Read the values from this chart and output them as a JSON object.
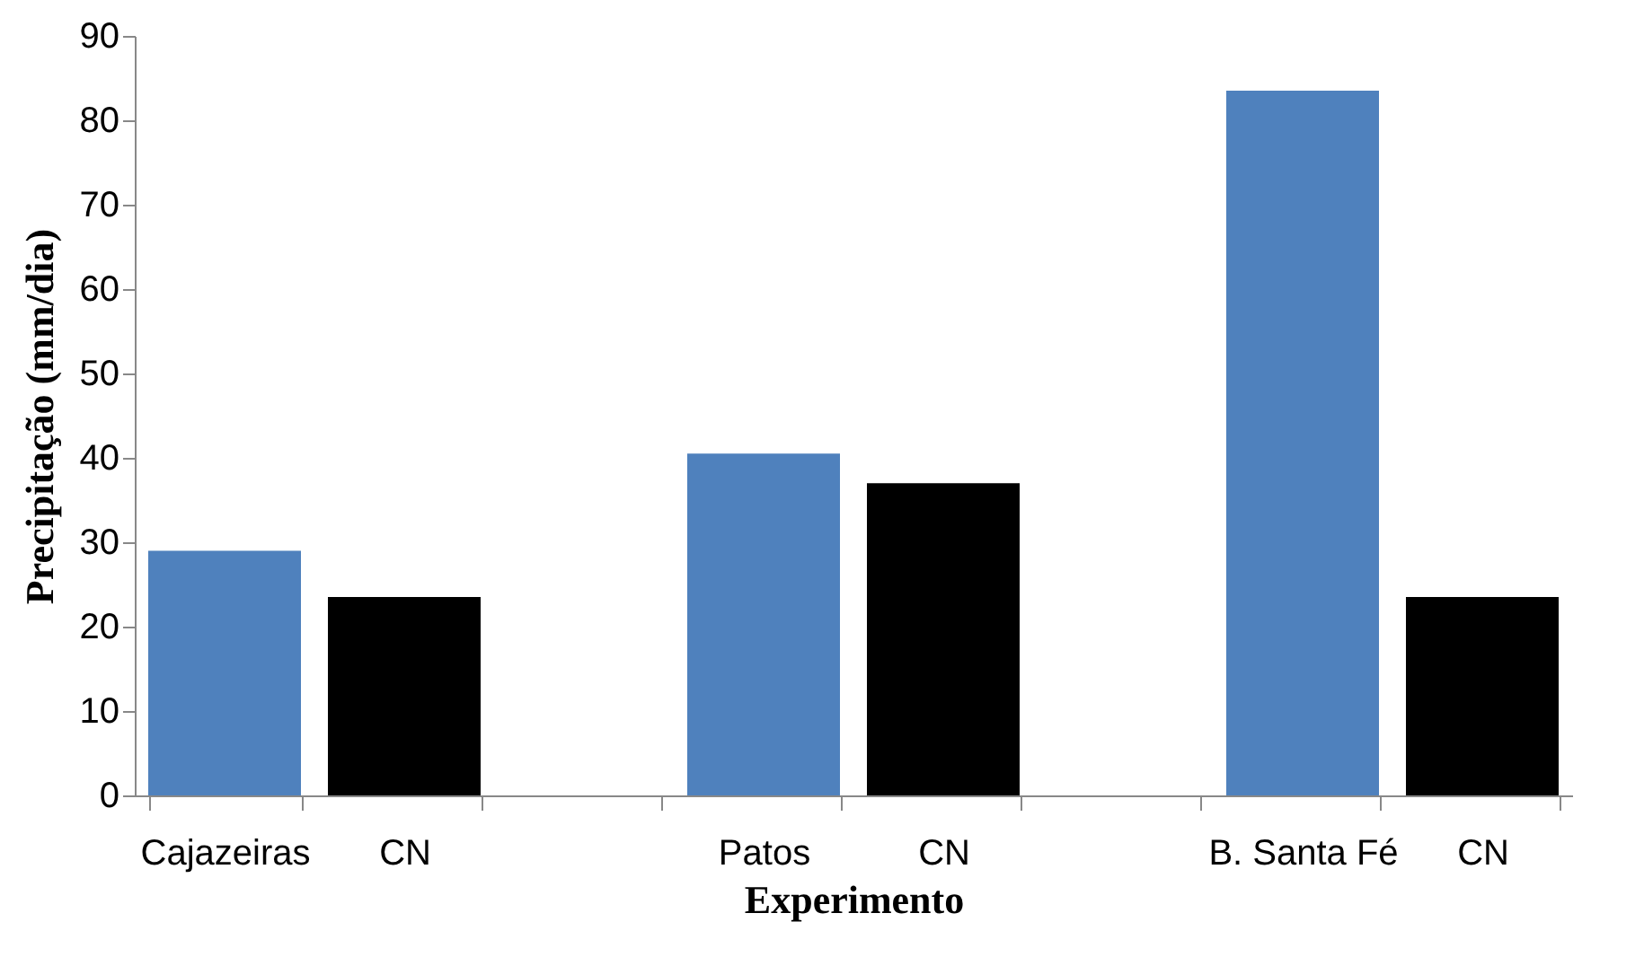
{
  "chart_data": {
    "type": "bar",
    "xlabel": "Experimento",
    "ylabel": "Precipitação (mm/dia)",
    "categories": [
      "Cajazeiras",
      "CN",
      null,
      "Patos",
      "CN",
      null,
      "B. Santa Fé",
      "CN"
    ],
    "values": [
      29,
      23.5,
      null,
      40.5,
      37,
      null,
      83.5,
      23.5
    ],
    "colors": [
      "#4f81bd",
      "#000000",
      null,
      "#4f81bd",
      "#000000",
      null,
      "#4f81bd",
      "#000000"
    ],
    "ylim": [
      0,
      90
    ],
    "yticks": [
      0,
      10,
      20,
      30,
      40,
      50,
      60,
      70,
      80,
      90
    ],
    "grid": false
  }
}
